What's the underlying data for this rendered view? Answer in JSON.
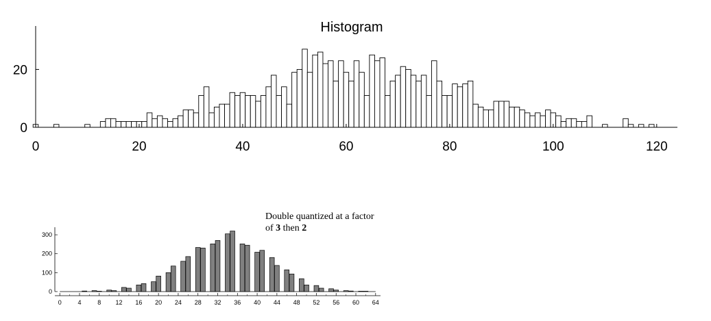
{
  "chart_data": [
    {
      "type": "bar",
      "title": "Histogram",
      "x": [
        0,
        1,
        2,
        3,
        4,
        5,
        6,
        7,
        8,
        9,
        10,
        11,
        12,
        13,
        14,
        15,
        16,
        17,
        18,
        19,
        20,
        21,
        22,
        23,
        24,
        25,
        26,
        27,
        28,
        29,
        30,
        31,
        32,
        33,
        34,
        35,
        36,
        37,
        38,
        39,
        40,
        41,
        42,
        43,
        44,
        45,
        46,
        47,
        48,
        49,
        50,
        51,
        52,
        53,
        54,
        55,
        56,
        57,
        58,
        59,
        60,
        61,
        62,
        63,
        64,
        65,
        66,
        67,
        68,
        69,
        70,
        71,
        72,
        73,
        74,
        75,
        76,
        77,
        78,
        79,
        80,
        81,
        82,
        83,
        84,
        85,
        86,
        87,
        88,
        89,
        90,
        91,
        92,
        93,
        94,
        95,
        96,
        97,
        98,
        99,
        100,
        101,
        102,
        103,
        104,
        105,
        106,
        107,
        108,
        109,
        110,
        111,
        112,
        113,
        114,
        115,
        116,
        117,
        118,
        119,
        120
      ],
      "values": [
        1,
        0,
        0,
        0,
        1,
        0,
        0,
        0,
        0,
        0,
        1,
        0,
        0,
        2,
        3,
        3,
        2,
        2,
        2,
        2,
        2,
        2,
        5,
        3,
        4,
        3,
        2,
        3,
        4,
        6,
        6,
        5,
        11,
        14,
        5,
        7,
        8,
        8,
        12,
        11,
        12,
        11,
        11,
        9,
        11,
        14,
        18,
        11,
        14,
        8,
        19,
        20,
        27,
        19,
        25,
        26,
        22,
        23,
        16,
        23,
        19,
        16,
        23,
        19,
        11,
        25,
        23,
        24,
        11,
        16,
        18,
        21,
        20,
        18,
        16,
        18,
        11,
        23,
        16,
        11,
        11,
        15,
        14,
        15,
        16,
        8,
        7,
        6,
        6,
        9,
        9,
        9,
        7,
        7,
        6,
        5,
        4,
        5,
        4,
        6,
        5,
        4,
        2,
        3,
        3,
        2,
        2,
        4,
        0,
        0,
        1,
        0,
        0,
        0,
        3,
        1,
        0,
        1,
        0,
        1,
        0
      ],
      "xticks": [
        0,
        20,
        40,
        60,
        80,
        100,
        120
      ],
      "yticks": [
        0,
        20
      ],
      "xlim": [
        0,
        124
      ],
      "ylim": [
        0,
        35
      ],
      "grid": false,
      "style": "outline"
    },
    {
      "type": "bar",
      "title": "",
      "annotation": {
        "line1": "Double quantized at a factor",
        "line2_pre": "of ",
        "line2_b1": "3",
        "line2_mid": " then ",
        "line2_b2": "2"
      },
      "x": [
        0,
        1,
        2,
        3,
        4,
        5,
        6,
        7,
        8,
        9,
        10,
        11,
        12,
        13,
        14,
        15,
        16,
        17,
        18,
        19,
        20,
        21,
        22,
        23,
        24,
        25,
        26,
        27,
        28,
        29,
        30,
        31,
        32,
        33,
        34,
        35,
        36,
        37,
        38,
        39,
        40,
        41,
        42,
        43,
        44,
        45,
        46,
        47,
        48,
        49,
        50,
        51,
        52,
        53,
        54,
        55,
        56,
        57,
        58,
        59,
        60,
        61,
        62,
        63,
        64
      ],
      "values": [
        0,
        0,
        0,
        0,
        0,
        0,
        0,
        0,
        0,
        0,
        0,
        0,
        0,
        0,
        0,
        0,
        0,
        0,
        0,
        0,
        0,
        0,
        0,
        0,
        0,
        0,
        0,
        0,
        0,
        0,
        0,
        0,
        0,
        0,
        0,
        0,
        0,
        0,
        0,
        0,
        0,
        0,
        0,
        0,
        0,
        0,
        0,
        0,
        0,
        0,
        0,
        0,
        0,
        0,
        0,
        0,
        0,
        0,
        0,
        0,
        0,
        0,
        0,
        0,
        0
      ],
      "bars": [
        {
          "x": 5,
          "v": 3
        },
        {
          "x": 7,
          "v": 5
        },
        {
          "x": 8,
          "v": 2
        },
        {
          "x": 10,
          "v": 8
        },
        {
          "x": 11,
          "v": 5
        },
        {
          "x": 13,
          "v": 22
        },
        {
          "x": 14,
          "v": 18
        },
        {
          "x": 16,
          "v": 35
        },
        {
          "x": 17,
          "v": 42
        },
        {
          "x": 19,
          "v": 52
        },
        {
          "x": 20,
          "v": 82
        },
        {
          "x": 22,
          "v": 100
        },
        {
          "x": 23,
          "v": 135
        },
        {
          "x": 25,
          "v": 160
        },
        {
          "x": 26,
          "v": 185
        },
        {
          "x": 28,
          "v": 233
        },
        {
          "x": 29,
          "v": 230
        },
        {
          "x": 31,
          "v": 252
        },
        {
          "x": 32,
          "v": 270
        },
        {
          "x": 34,
          "v": 305
        },
        {
          "x": 35,
          "v": 320
        },
        {
          "x": 37,
          "v": 252
        },
        {
          "x": 38,
          "v": 245
        },
        {
          "x": 40,
          "v": 208
        },
        {
          "x": 41,
          "v": 218
        },
        {
          "x": 43,
          "v": 180
        },
        {
          "x": 44,
          "v": 138
        },
        {
          "x": 46,
          "v": 115
        },
        {
          "x": 47,
          "v": 93
        },
        {
          "x": 49,
          "v": 68
        },
        {
          "x": 50,
          "v": 35
        },
        {
          "x": 52,
          "v": 32
        },
        {
          "x": 53,
          "v": 18
        },
        {
          "x": 55,
          "v": 15
        },
        {
          "x": 56,
          "v": 8
        },
        {
          "x": 58,
          "v": 5
        },
        {
          "x": 59,
          "v": 3
        },
        {
          "x": 61,
          "v": 2
        },
        {
          "x": 62,
          "v": 2
        }
      ],
      "xticks": [
        0,
        4,
        8,
        12,
        16,
        20,
        24,
        28,
        32,
        36,
        40,
        44,
        48,
        52,
        56,
        60,
        64
      ],
      "yticks": [
        0,
        100,
        200,
        300
      ],
      "xlim": [
        -1,
        65
      ],
      "ylim": [
        0,
        340
      ],
      "grid": false,
      "style": "filled",
      "bar_color": "#808080"
    }
  ]
}
